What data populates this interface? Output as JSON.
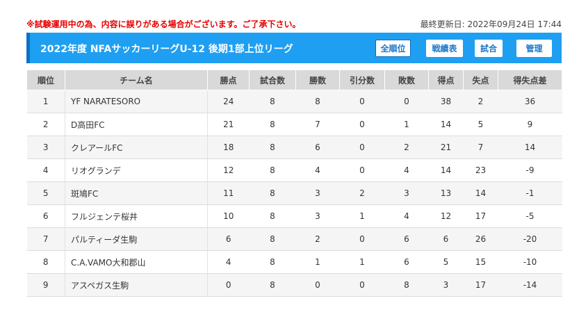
{
  "notice": "※試験運用中の為、内容に誤りがある場合がございます。ご了承下さい。",
  "last_updated": "最終更新日: 2022年09月24日 17:44",
  "title": "2022年度 NFAサッカーリーグU-12 後期1部上位リーグ",
  "nav": {
    "standings": "全順位",
    "results_table": "戦績表",
    "matches": "試合",
    "admin": "管理"
  },
  "colors": {
    "title_bg": "#1e9ff2",
    "title_accent": "#0a72c4",
    "notice": "#e60000"
  },
  "table": {
    "headers": [
      "順位",
      "チーム名",
      "勝点",
      "試合数",
      "勝数",
      "引分数",
      "敗数",
      "得点",
      "失点",
      "得失点差"
    ],
    "rows": [
      [
        "1",
        "YF NARATESORO",
        "24",
        "8",
        "8",
        "0",
        "0",
        "38",
        "2",
        "36"
      ],
      [
        "2",
        "D高田FC",
        "21",
        "8",
        "7",
        "0",
        "1",
        "14",
        "5",
        "9"
      ],
      [
        "3",
        "クレアールFC",
        "18",
        "8",
        "6",
        "0",
        "2",
        "21",
        "7",
        "14"
      ],
      [
        "4",
        "リオグランデ",
        "12",
        "8",
        "4",
        "0",
        "4",
        "14",
        "23",
        "-9"
      ],
      [
        "5",
        "斑鳩FC",
        "11",
        "8",
        "3",
        "2",
        "3",
        "13",
        "14",
        "-1"
      ],
      [
        "6",
        "フルジェンテ桜井",
        "10",
        "8",
        "3",
        "1",
        "4",
        "12",
        "17",
        "-5"
      ],
      [
        "7",
        "パルティーダ生駒",
        "6",
        "8",
        "2",
        "0",
        "6",
        "6",
        "26",
        "-20"
      ],
      [
        "8",
        "C.A.VAMO大和郡山",
        "4",
        "8",
        "1",
        "1",
        "6",
        "5",
        "15",
        "-10"
      ],
      [
        "9",
        "アスペガス生駒",
        "0",
        "8",
        "0",
        "0",
        "8",
        "3",
        "17",
        "-14"
      ]
    ]
  }
}
